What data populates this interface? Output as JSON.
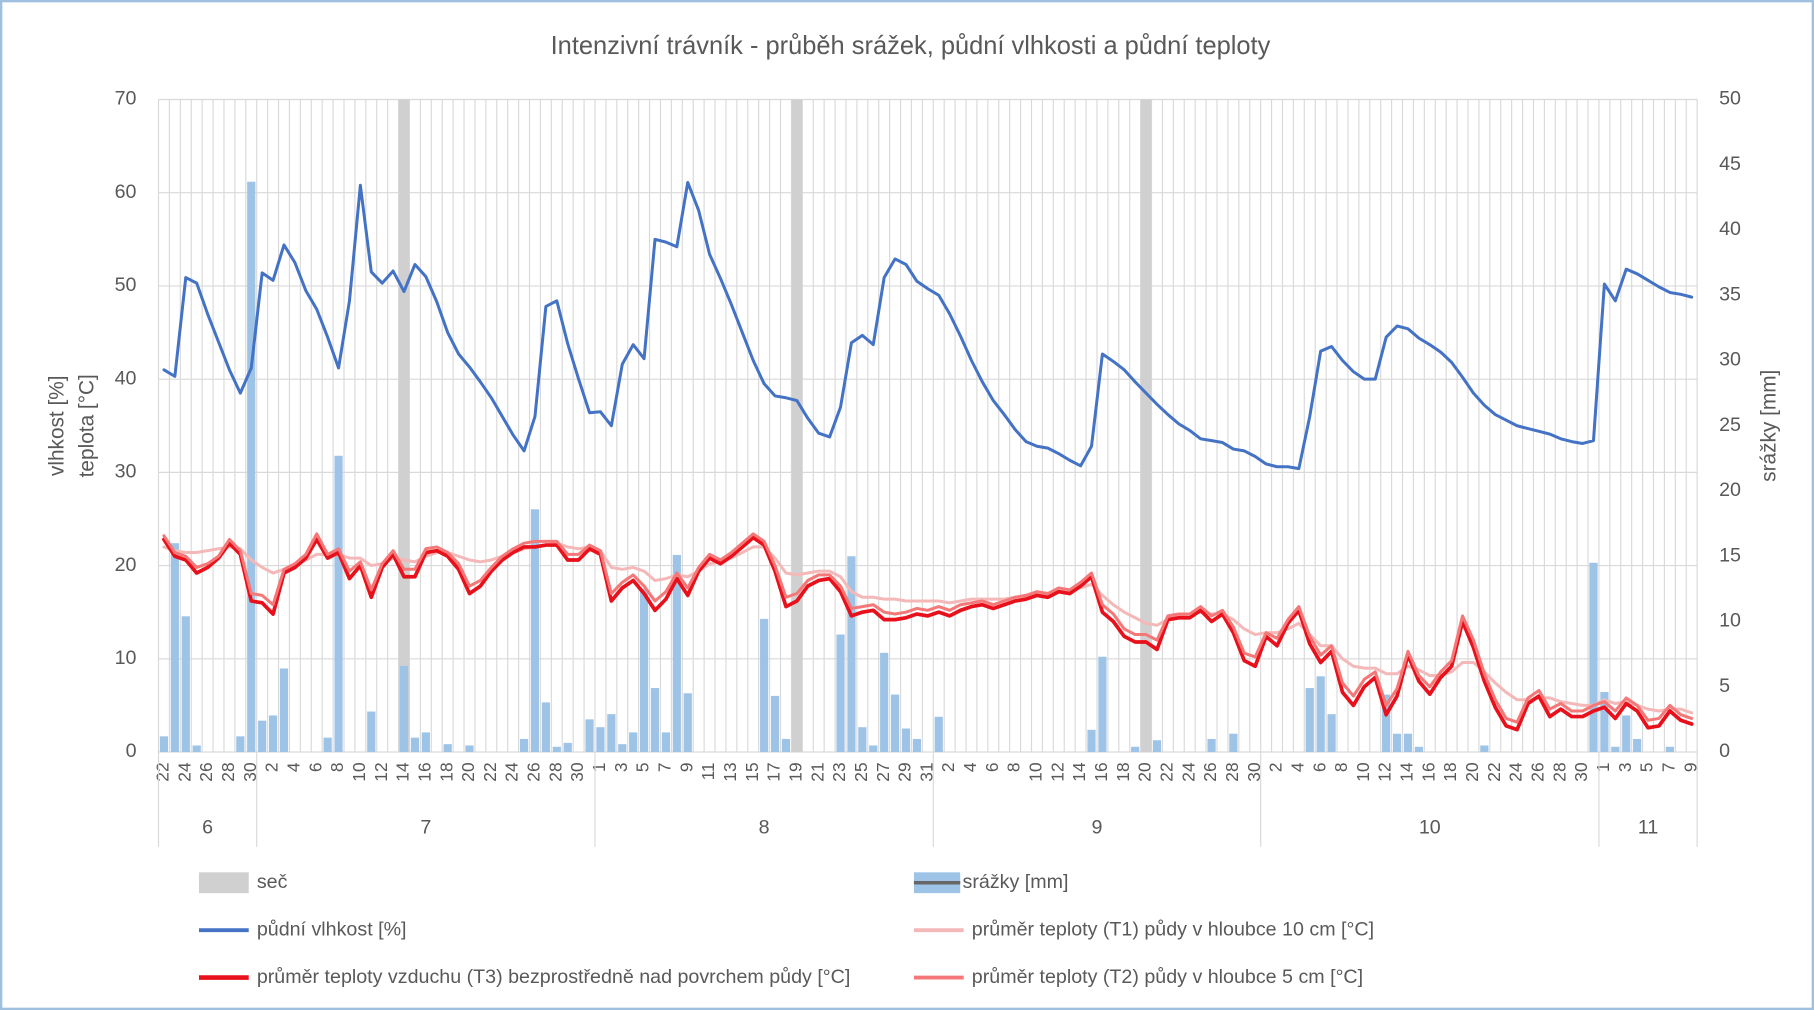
{
  "chart_data": {
    "type": "combo",
    "title": "Intenzivní trávník - průběh srážek, půdní vlhkosti a půdní teploty",
    "y_label": [
      "vlhkost [%]",
      "teplota [°C]"
    ],
    "y2_label": "srážky [mm]",
    "categories": [
      "22",
      null,
      "24",
      null,
      "26",
      null,
      "28",
      null,
      "30",
      null,
      "2",
      null,
      "4",
      null,
      "6",
      null,
      "8",
      null,
      "10",
      null,
      "12",
      null,
      "14",
      null,
      "16",
      null,
      "18",
      null,
      "20",
      null,
      "22",
      null,
      "24",
      null,
      "26",
      null,
      "28",
      null,
      "30",
      null,
      "1",
      null,
      "3",
      null,
      "5",
      null,
      "7",
      null,
      "9",
      null,
      "11",
      null,
      "13",
      null,
      "15",
      null,
      "17",
      null,
      "19",
      null,
      "21",
      null,
      "23",
      null,
      "25",
      null,
      "27",
      null,
      "29",
      null,
      "31",
      null,
      "2",
      null,
      "4",
      null,
      "6",
      null,
      "8",
      null,
      "10",
      null,
      "12",
      null,
      "14",
      null,
      "16",
      null,
      "18",
      null,
      "20",
      null,
      "22",
      null,
      "24",
      null,
      "26",
      null,
      "28",
      null,
      "30",
      null,
      "2",
      null,
      "4",
      null,
      "6",
      null,
      "8",
      null,
      "10",
      null,
      "12",
      null,
      "14",
      null,
      "16",
      null,
      "18",
      null,
      "20",
      null,
      "22",
      null,
      "24",
      null,
      "26",
      null,
      "28",
      null,
      "30",
      null,
      "1",
      null,
      "3",
      null,
      "5",
      null,
      "7",
      null,
      "9"
    ],
    "x_groups": [
      {
        "label": "6",
        "days": 9
      },
      {
        "label": "7",
        "days": 31
      },
      {
        "label": "8",
        "days": 31
      },
      {
        "label": "9",
        "days": 30
      },
      {
        "label": "10",
        "days": 31
      },
      {
        "label": "11",
        "days": 9
      }
    ],
    "ylim": [
      0,
      70
    ],
    "yticks": [
      0,
      10,
      20,
      30,
      40,
      50,
      60,
      70
    ],
    "y2lim": [
      0,
      50
    ],
    "y2ticks": [
      0,
      5,
      10,
      15,
      20,
      25,
      30,
      35,
      40,
      45,
      50
    ],
    "grid": true,
    "legend": "bottom",
    "series": [
      {
        "name": "seč",
        "kind": "bar",
        "axis": "y2",
        "color": "#d0d0d0",
        "values": [
          null,
          null,
          null,
          null,
          null,
          null,
          null,
          null,
          null,
          null,
          null,
          null,
          null,
          null,
          null,
          null,
          null,
          null,
          null,
          null,
          null,
          null,
          50,
          null,
          null,
          null,
          null,
          null,
          null,
          null,
          null,
          null,
          null,
          null,
          null,
          null,
          null,
          null,
          null,
          null,
          null,
          null,
          null,
          null,
          null,
          null,
          null,
          null,
          null,
          null,
          null,
          null,
          null,
          null,
          null,
          null,
          null,
          null,
          50,
          null,
          null,
          null,
          null,
          null,
          null,
          null,
          null,
          null,
          null,
          null,
          null,
          null,
          null,
          null,
          null,
          null,
          null,
          null,
          null,
          null,
          null,
          null,
          null,
          null,
          null,
          null,
          null,
          null,
          null,
          null,
          50,
          null,
          null,
          null,
          null,
          null,
          null,
          null,
          null,
          null,
          null,
          null,
          null,
          null,
          null,
          null,
          null,
          null,
          null,
          null,
          null,
          null,
          null,
          null,
          null,
          null,
          null,
          null,
          null,
          null,
          null,
          null,
          null,
          null,
          null,
          null,
          null,
          null,
          null,
          null,
          null,
          null,
          null,
          null,
          null,
          null,
          null,
          null,
          null,
          null,
          null
        ]
      },
      {
        "name": "srážky [mm]",
        "kind": "bar",
        "axis": "y2",
        "color": "#9dc3e6",
        "values": [
          1.2,
          16,
          10.4,
          0.5,
          0,
          0,
          0,
          1.2,
          43.7,
          2.4,
          2.8,
          6.4,
          0,
          0,
          0,
          1.1,
          22.7,
          0,
          0,
          3.1,
          0,
          0,
          6.6,
          1.1,
          1.5,
          0,
          0.6,
          0,
          0.5,
          0,
          0,
          0,
          0,
          1,
          18.6,
          3.8,
          0.4,
          0.7,
          0,
          2.5,
          1.9,
          2.9,
          0.6,
          1.5,
          12.5,
          4.9,
          1.5,
          15.1,
          4.5,
          0,
          0,
          0,
          0,
          0,
          0,
          10.2,
          4.3,
          1,
          0,
          0,
          0,
          0,
          9,
          15,
          1.9,
          0.5,
          7.6,
          4.4,
          1.8,
          1,
          0,
          2.7,
          0,
          0,
          0,
          0,
          0,
          0,
          0,
          0,
          0,
          0,
          0,
          0,
          0,
          1.7,
          7.3,
          0,
          0,
          0.4,
          0,
          0.9,
          0,
          0,
          0,
          0,
          1,
          0,
          1.4,
          0,
          0,
          0,
          0,
          0,
          0,
          4.9,
          5.8,
          2.9,
          0,
          0,
          0,
          0,
          4.4,
          1.4,
          1.4,
          0.4,
          0,
          0,
          0,
          0,
          0,
          0.5,
          0,
          0,
          0,
          0,
          0,
          0,
          0,
          0,
          0,
          14.5,
          4.6,
          0.4,
          2.8,
          1,
          0,
          0,
          0.4,
          0,
          0
        ]
      },
      {
        "name": "půdní vlhkost [%]",
        "kind": "line",
        "color": "#4472c4",
        "values": [
          41,
          40.3,
          50.9,
          50.3,
          47,
          44,
          41,
          38.5,
          41.2,
          51.4,
          50.6,
          54.4,
          52.5,
          49.5,
          47.5,
          44.5,
          41.2,
          48.4,
          60.8,
          51.5,
          50.3,
          51.6,
          49.4,
          52.3,
          51,
          48.3,
          45,
          42.7,
          41.3,
          39.7,
          38,
          36,
          34,
          32.3,
          36,
          47.8,
          48.4,
          43.8,
          40,
          36.4,
          36.5,
          35,
          41.6,
          43.7,
          42.2,
          55,
          54.7,
          54.2,
          61.1,
          58.1,
          53.4,
          50.8,
          48,
          45,
          42,
          39.5,
          38.2,
          38,
          37.7,
          35.8,
          34.2,
          33.8,
          37,
          43.9,
          44.7,
          43.7,
          50.9,
          52.9,
          52.3,
          50.5,
          49.7,
          49,
          47,
          44.6,
          42,
          39.7,
          37.7,
          36.2,
          34.6,
          33.3,
          32.8,
          32.6,
          32,
          31.3,
          30.7,
          32.8,
          42.7,
          41.9,
          41,
          39.7,
          38.5,
          37.3,
          36.2,
          35.2,
          34.5,
          33.6,
          33.4,
          33.2,
          32.5,
          32.3,
          31.7,
          30.9,
          30.6,
          30.6,
          30.4,
          36,
          43,
          43.5,
          42,
          40.8,
          40,
          40,
          44.5,
          45.7,
          45.4,
          44.4,
          43.7,
          42.9,
          41.8,
          40.2,
          38.5,
          37.2,
          36.2,
          35.6,
          35,
          34.7,
          34.4,
          34.1,
          33.6,
          33.3,
          33.1,
          33.4,
          50.2,
          48.4,
          51.8,
          51.3,
          50.6,
          49.9,
          49.3,
          49.1,
          48.8
        ]
      },
      {
        "name": "průměr teploty (T1) půdy v hloubce 10 cm [°C]",
        "kind": "line",
        "color": "#f4b8b8",
        "values": [
          22,
          21.6,
          21.4,
          21.4,
          21.6,
          21.8,
          22,
          21.8,
          20.6,
          19.8,
          19.2,
          19.6,
          20,
          20.6,
          21.2,
          21.2,
          21.2,
          20.8,
          20.8,
          20,
          20.2,
          20.8,
          20.6,
          20.4,
          21,
          21.4,
          21.4,
          21,
          20.6,
          20.4,
          20.6,
          21,
          21.4,
          21.8,
          22,
          22.2,
          22.4,
          22,
          21.8,
          22,
          21.6,
          19.8,
          19.6,
          19.8,
          19.4,
          18.4,
          18.6,
          19,
          18.8,
          19.4,
          20.2,
          20.4,
          20.8,
          21.4,
          22,
          22,
          20.8,
          19.2,
          19,
          19.2,
          19.4,
          19.4,
          18.8,
          17.2,
          16.6,
          16.6,
          16.4,
          16.4,
          16.2,
          16.2,
          16.2,
          16.2,
          16,
          16.2,
          16.4,
          16.4,
          16.4,
          16.4,
          16.6,
          16.8,
          17,
          17,
          17.2,
          17.4,
          17.6,
          18,
          16.8,
          15.8,
          15,
          14.4,
          13.8,
          13.6,
          14.2,
          14.6,
          14.8,
          15,
          14.8,
          14.8,
          14.2,
          13.2,
          12.6,
          12.8,
          12.8,
          13.2,
          13.8,
          12.6,
          11.4,
          11.4,
          10,
          9.2,
          9,
          9,
          8.4,
          8.4,
          9.2,
          8.8,
          8.2,
          8.2,
          8.6,
          9.6,
          9.6,
          8.6,
          7.4,
          6.4,
          5.6,
          5.6,
          5.8,
          5.8,
          5.4,
          5.2,
          5,
          5,
          5.6,
          5.2,
          5.4,
          5,
          4.6,
          4.4,
          4.6,
          4.6,
          4.2
        ]
      },
      {
        "name": "průměr teploty vzduchu (T3) bezprostředně nad povrchem půdy [°C]",
        "kind": "line",
        "color": "#e8101a",
        "values": [
          22.8,
          21,
          20.6,
          19.2,
          19.8,
          20.8,
          22.4,
          21.2,
          16.2,
          16,
          14.8,
          19.2,
          19.8,
          20.8,
          22.8,
          20.8,
          21.4,
          18.6,
          20,
          16.6,
          19.8,
          21.2,
          18.8,
          18.8,
          21.4,
          21.6,
          21,
          19.6,
          17,
          17.8,
          19.4,
          20.6,
          21.4,
          22,
          22,
          22.2,
          22.2,
          20.6,
          20.6,
          21.8,
          21.2,
          16.2,
          17.6,
          18.4,
          17,
          15.2,
          16.4,
          18.6,
          16.8,
          19.4,
          20.8,
          20.2,
          21,
          22,
          23,
          22.2,
          19.4,
          15.6,
          16.2,
          17.8,
          18.4,
          18.6,
          17.2,
          14.6,
          15,
          15.2,
          14.2,
          14.2,
          14.4,
          14.8,
          14.6,
          15,
          14.6,
          15.2,
          15.6,
          15.8,
          15.4,
          15.8,
          16.2,
          16.4,
          16.8,
          16.6,
          17.2,
          17,
          17.8,
          18.8,
          15,
          14,
          12.4,
          11.8,
          11.8,
          11,
          14.2,
          14.4,
          14.4,
          15.2,
          14,
          14.8,
          12.8,
          9.8,
          9.2,
          12.4,
          11.4,
          13.8,
          15.2,
          11.6,
          9.6,
          10.8,
          6.4,
          5,
          7,
          8,
          4,
          6,
          10.4,
          7.6,
          6.2,
          8,
          9.2,
          14,
          11.2,
          7.6,
          4.8,
          2.8,
          2.4,
          5.2,
          6,
          3.8,
          4.6,
          3.8,
          3.8,
          4.4,
          4.8,
          3.6,
          5.2,
          4.4,
          2.6,
          2.8,
          4.4,
          3.4,
          3
        ]
      },
      {
        "name": "průměr teploty (T2) půdy v hloubce 5 cm [°C]",
        "kind": "line",
        "color": "#f47878",
        "values": [
          23.2,
          21.4,
          21,
          19.8,
          20.2,
          21,
          22.8,
          21.6,
          17,
          16.8,
          15.8,
          19.6,
          20.2,
          21.2,
          23.4,
          21.2,
          21.8,
          19.4,
          20.4,
          17.4,
          20.2,
          21.6,
          19.6,
          19.6,
          21.8,
          22,
          21.4,
          20.2,
          17.8,
          18.4,
          19.8,
          21,
          21.8,
          22.4,
          22.6,
          22.6,
          22.6,
          21.2,
          21.2,
          22.2,
          21.6,
          17,
          18.2,
          19,
          17.8,
          16.2,
          17.2,
          19.2,
          17.6,
          19.8,
          21.2,
          20.6,
          21.4,
          22.4,
          23.4,
          22.6,
          20,
          16.6,
          17,
          18.4,
          19,
          19,
          17.8,
          15.4,
          15.6,
          15.8,
          15,
          14.8,
          15,
          15.4,
          15.2,
          15.6,
          15.2,
          15.8,
          16,
          16.2,
          15.8,
          16.2,
          16.6,
          16.8,
          17.2,
          17,
          17.6,
          17.4,
          18.2,
          19.2,
          15.8,
          14.8,
          13.2,
          12.6,
          12.6,
          12,
          14.6,
          14.8,
          14.8,
          15.6,
          14.6,
          15.2,
          13.4,
          10.6,
          10.2,
          12.8,
          12.2,
          14.2,
          15.6,
          12.4,
          10.4,
          11.4,
          7.4,
          6,
          7.8,
          8.6,
          5,
          6.8,
          10.8,
          8.2,
          7,
          8.6,
          9.8,
          14.6,
          12,
          8.4,
          5.6,
          3.6,
          3.2,
          5.8,
          6.6,
          4.6,
          5.2,
          4.4,
          4.4,
          5,
          5.4,
          4.4,
          5.8,
          5,
          3.4,
          3.6,
          5,
          4,
          3.6
        ]
      }
    ]
  }
}
